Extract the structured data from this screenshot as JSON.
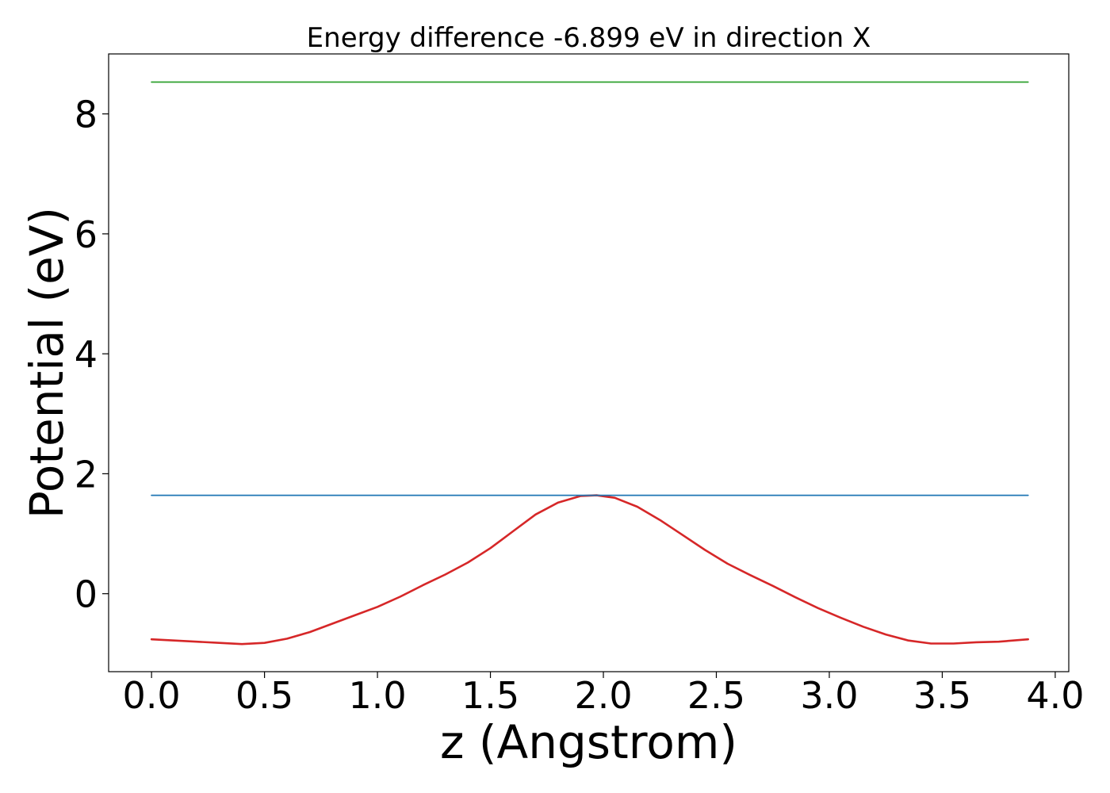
{
  "chart_data": {
    "type": "line",
    "title": "Energy difference -6.899 eV in direction X",
    "xlabel": "z (Angstrom)",
    "ylabel": "Potential (eV)",
    "xlim": [
      -0.19,
      4.06
    ],
    "ylim": [
      -1.3,
      9.0
    ],
    "xticks": [
      0.0,
      0.5,
      1.0,
      1.5,
      2.0,
      2.5,
      3.0,
      3.5,
      4.0
    ],
    "xtick_labels": [
      "0.0",
      "0.5",
      "1.0",
      "1.5",
      "2.0",
      "2.5",
      "3.0",
      "3.5",
      "4.0"
    ],
    "yticks": [
      0,
      2,
      4,
      6,
      8
    ],
    "ytick_labels": [
      "0",
      "2",
      "4",
      "6",
      "8"
    ],
    "grid": false,
    "legend": "none",
    "series": [
      {
        "color": "#d62728",
        "x": [
          0.0,
          0.1,
          0.2,
          0.3,
          0.4,
          0.5,
          0.6,
          0.7,
          0.8,
          0.9,
          1.0,
          1.1,
          1.2,
          1.3,
          1.4,
          1.5,
          1.6,
          1.7,
          1.8,
          1.9,
          1.97,
          2.05,
          2.15,
          2.25,
          2.35,
          2.45,
          2.55,
          2.65,
          2.75,
          2.85,
          2.95,
          3.05,
          3.15,
          3.25,
          3.35,
          3.45,
          3.55,
          3.65,
          3.75,
          3.88
        ],
        "y": [
          -0.76,
          -0.78,
          -0.8,
          -0.82,
          -0.84,
          -0.82,
          -0.75,
          -0.64,
          -0.5,
          -0.36,
          -0.22,
          -0.05,
          0.14,
          0.32,
          0.52,
          0.76,
          1.04,
          1.32,
          1.52,
          1.63,
          1.64,
          1.6,
          1.45,
          1.23,
          0.98,
          0.73,
          0.5,
          0.31,
          0.13,
          -0.06,
          -0.24,
          -0.4,
          -0.55,
          -0.68,
          -0.78,
          -0.83,
          -0.83,
          -0.81,
          -0.8,
          -0.76
        ]
      },
      {
        "color": "#1f77b4",
        "x": [
          0.0,
          3.88
        ],
        "y": [
          1.64,
          1.64
        ]
      },
      {
        "color": "#2ca02c",
        "x": [
          0.0,
          3.88
        ],
        "y": [
          8.53,
          8.53
        ]
      }
    ]
  }
}
